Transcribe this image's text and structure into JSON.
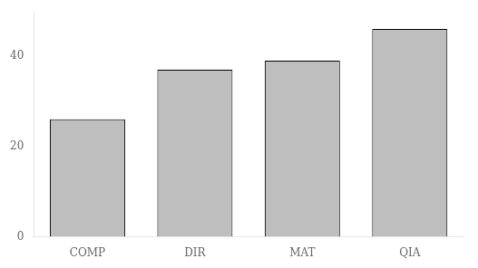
{
  "chart_data": {
    "type": "bar",
    "categories": [
      "COMP",
      "DIR",
      "MAT",
      "QIA"
    ],
    "values": [
      26,
      37,
      39,
      46
    ],
    "color": "#bebebe",
    "ylim": [
      0,
      50
    ],
    "yticks": [
      0,
      20,
      40
    ],
    "grid": false
  }
}
